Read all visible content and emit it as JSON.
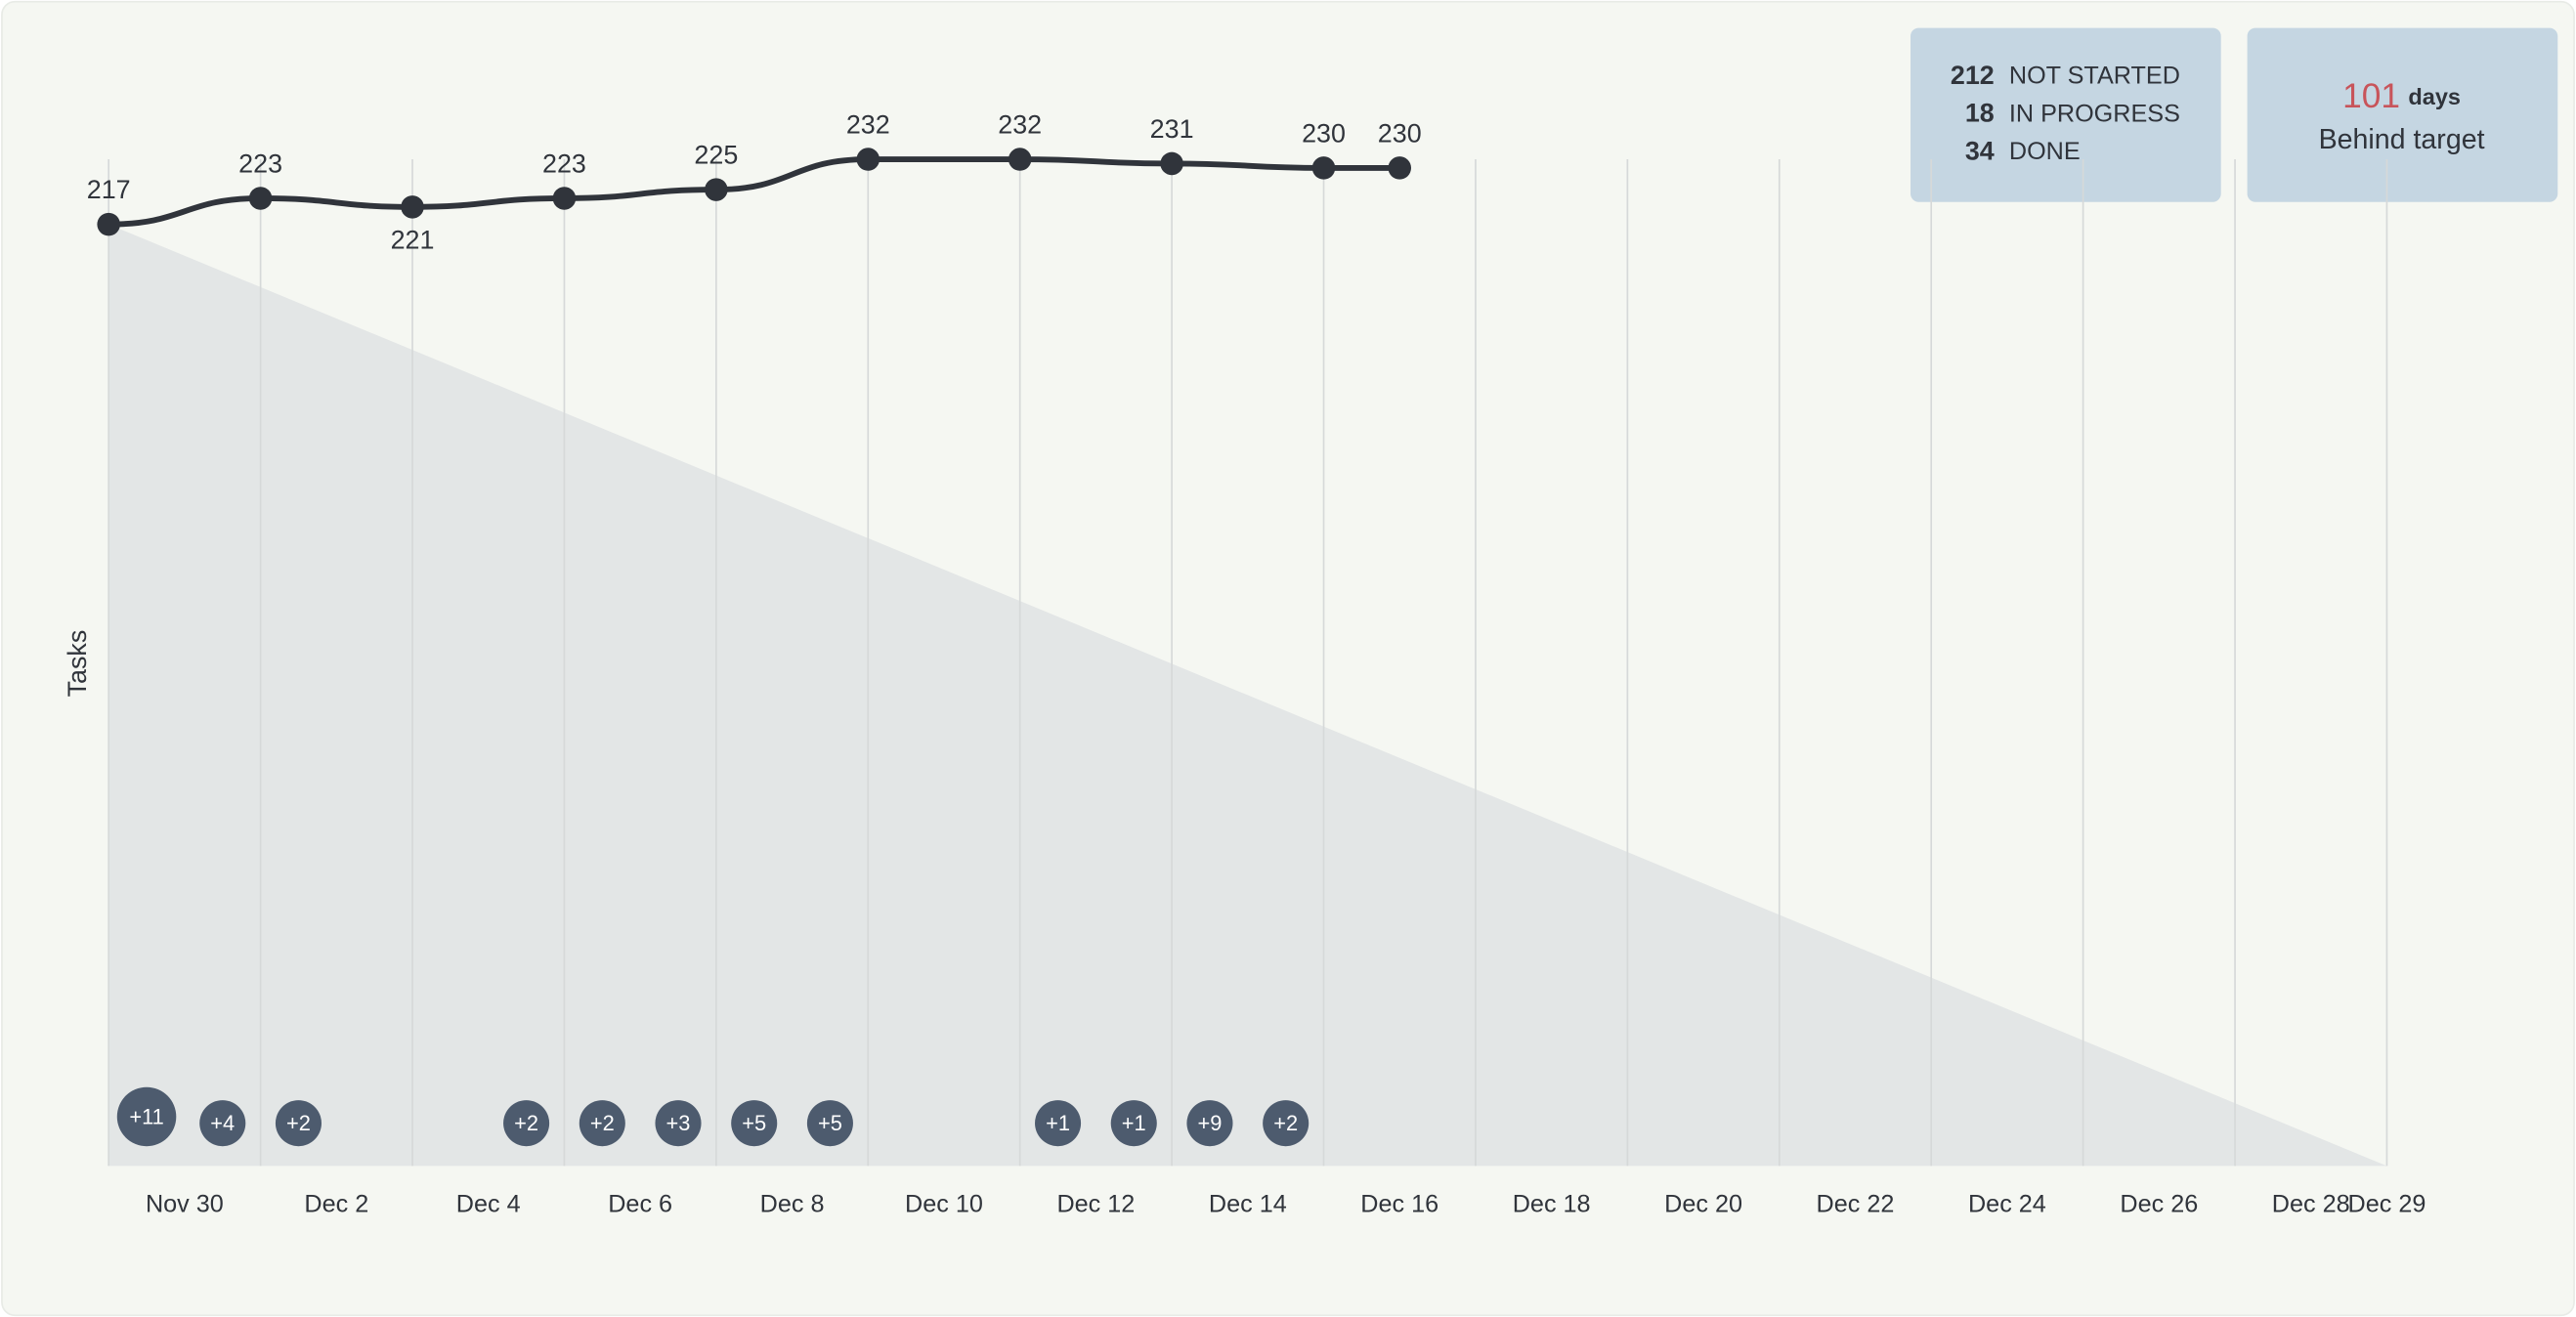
{
  "chart_data": {
    "type": "line",
    "y_label": "Tasks",
    "x": [
      "Nov 29",
      "Dec 1",
      "Dec 3",
      "Dec 5",
      "Dec 7",
      "Dec 9",
      "Dec 11",
      "Dec 13",
      "Dec 15",
      "Dec 16"
    ],
    "values": [
      217,
      223,
      221,
      223,
      225,
      232,
      232,
      231,
      230,
      230
    ],
    "color": "#30343b",
    "xlim": [
      "Nov 29",
      "Dec 29"
    ],
    "xticks": [
      "Nov 30",
      "Dec 2",
      "Dec 4",
      "Dec 6",
      "Dec 8",
      "Dec 10",
      "Dec 12",
      "Dec 14",
      "Dec 16",
      "Dec 18",
      "Dec 20",
      "Dec 22",
      "Dec 24",
      "Dec 26",
      "Dec 28",
      "Dec 29"
    ],
    "ylim": [
      0,
      260
    ],
    "grid": true,
    "scope_changes": {
      "color": "#4d5b6e",
      "x": [
        "Nov 29",
        "Nov 30",
        "Dec 1",
        "Dec 4",
        "Dec 5",
        "Dec 6",
        "Dec 7",
        "Dec 8",
        "Dec 11",
        "Dec 12",
        "Dec 13",
        "Dec 14"
      ],
      "values": [
        11,
        4,
        2,
        2,
        2,
        3,
        5,
        5,
        1,
        1,
        9,
        2
      ],
      "value_labels": [
        "+11",
        "+4",
        "+2",
        "+2",
        "+2",
        "+3",
        "+5",
        "+5",
        "+1",
        "+1",
        "+9",
        "+2"
      ]
    }
  },
  "summary": [
    {
      "value": 212,
      "label": "NOT STARTED"
    },
    {
      "value": 18,
      "label": "IN PROGRESS"
    },
    {
      "value": 34,
      "label": "DONE"
    }
  ],
  "behind": {
    "value": 101,
    "unit": "days",
    "label": "Behind target"
  }
}
